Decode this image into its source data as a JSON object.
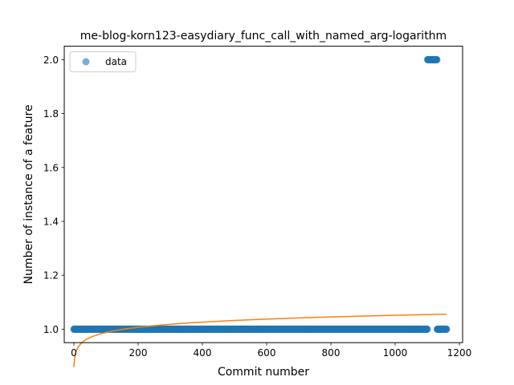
{
  "chart_data": {
    "type": "scatter",
    "title": "me-blog-korn123-easydiary_func_call_with_named_arg-logarithm",
    "xlabel": "Commit number",
    "ylabel": "Number of instance of a feature",
    "xlim": [
      -30,
      1210
    ],
    "ylim": [
      0.95,
      2.05
    ],
    "xticks": [
      0,
      200,
      400,
      600,
      800,
      1000,
      1200
    ],
    "yticks": [
      1.0,
      1.2,
      1.4,
      1.6,
      1.8,
      2.0
    ],
    "xtick_labels": [
      "0",
      "200",
      "400",
      "600",
      "800",
      "1000",
      "1200"
    ],
    "ytick_labels": [
      "1.0",
      "1.2",
      "1.4",
      "1.6",
      "1.8",
      "2.0"
    ],
    "grid": false,
    "legend": {
      "position": "top-left",
      "entries": [
        "data"
      ]
    },
    "series": [
      {
        "name": "data",
        "type": "scatter",
        "color": "#1f77b4",
        "segments": [
          {
            "x_start": 0,
            "x_end": 1100,
            "y": 1.0
          },
          {
            "x_start": 1101,
            "x_end": 1130,
            "y": 2.0
          },
          {
            "x_start": 1131,
            "x_end": 1160,
            "y": 1.0
          }
        ]
      },
      {
        "type": "line",
        "color": "#ff7f0e",
        "model": "logarithmic",
        "x_range": [
          0,
          1160
        ],
        "coefficients": {
          "a": 0.8593,
          "b": 0.02783
        }
      }
    ]
  }
}
